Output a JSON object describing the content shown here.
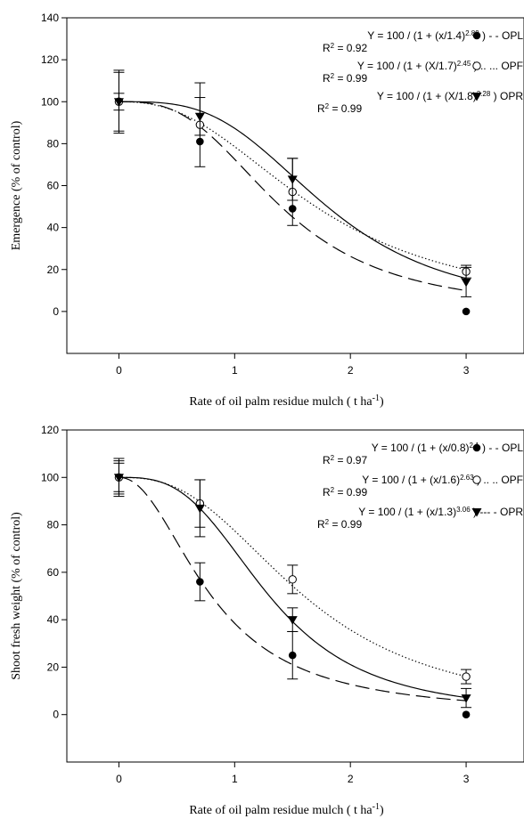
{
  "chart_data": [
    {
      "type": "scatter",
      "xlabel": "Rate of oil palm residue mulch ( t ha",
      "xlabel_sup": "-1",
      "xlabel_end": ")",
      "ylabel": "Emergence (% of control)",
      "xlim": [
        -0.45,
        3.5
      ],
      "ylim": [
        -20,
        140
      ],
      "xticks": [
        0,
        1,
        2,
        3
      ],
      "yticks": [
        0,
        20,
        40,
        60,
        80,
        100,
        120,
        140
      ],
      "legend_placement": "top-right",
      "series": [
        {
          "name": "OPL",
          "marker": "filled-circle",
          "line": "long-dash",
          "color": "#000000",
          "fit": {
            "c": 1.4,
            "b": 2.89
          },
          "x": [
            0,
            0.7,
            1.5,
            3
          ],
          "y": [
            100,
            81,
            49,
            0
          ],
          "err": [
            15,
            0,
            0,
            0
          ],
          "legend": {
            "eq_pre": "Y = 100 / (1 + (x/1.4)",
            "exp": "2.89",
            "eq_post": ") -",
            "name": "- OPL",
            "r2_pre": "R",
            "r2_post": " = 0.92"
          }
        },
        {
          "name": "OPF",
          "marker": "open-circle",
          "line": "dotted",
          "color": "#000000",
          "fit": {
            "c": 1.7,
            "b": 2.45
          },
          "x": [
            0,
            0.7,
            1.5,
            3
          ],
          "y": [
            100,
            89,
            57,
            19
          ],
          "err": [
            14,
            20,
            16,
            3
          ],
          "legend": {
            "eq_pre": "Y = 100 / (1 + (X/1.7)",
            "exp": "2.45",
            "eq_post": ") ..",
            "name": "... OPF",
            "r2_pre": "R",
            "r2_post": " = 0.99"
          }
        },
        {
          "name": "OPR",
          "marker": "filled-triangle-down",
          "line": "solid",
          "color": "#000000",
          "fit": {
            "c": 1.8,
            "b": 3.28
          },
          "x": [
            0,
            0.7,
            1.5,
            3
          ],
          "y": [
            100,
            93,
            63,
            14
          ],
          "err": [
            4,
            9,
            10,
            7
          ],
          "legend": {
            "eq_pre": "Y = 100 / (1 + (X/1.8)",
            "exp": "3.28",
            "eq_post": ")",
            "name": "OPR",
            "r2_pre": "R",
            "r2_post": " = 0.99"
          }
        }
      ]
    },
    {
      "type": "scatter",
      "xlabel": "Rate of oil palm residue mulch ( t ha",
      "xlabel_sup": "-1",
      "xlabel_end": ")",
      "ylabel": "Shoot fresh weight (% of control)",
      "xlim": [
        -0.45,
        3.5
      ],
      "ylim": [
        -20,
        120
      ],
      "xticks": [
        0,
        1,
        2,
        3
      ],
      "yticks": [
        0,
        20,
        40,
        60,
        80,
        100,
        120
      ],
      "legend_placement": "top-right",
      "series": [
        {
          "name": "OPL",
          "marker": "filled-circle",
          "line": "long-dash",
          "color": "#000000",
          "fit": {
            "c": 0.8,
            "b": 2.1
          },
          "x": [
            0,
            0.7,
            1.5,
            3
          ],
          "y": [
            100,
            56,
            25,
            0
          ],
          "err": [
            8,
            8,
            10,
            0
          ],
          "legend": {
            "eq_pre": "Y = 100 / (1 + (x/0.8)",
            "exp": "2.1",
            "eq_post": ") -",
            "name": "- OPL",
            "r2_pre": "R",
            "r2_post": " = 0.97"
          }
        },
        {
          "name": "OPF",
          "marker": "open-circle",
          "line": "dotted",
          "color": "#000000",
          "fit": {
            "c": 1.6,
            "b": 2.63
          },
          "x": [
            0,
            0.7,
            1.5,
            3
          ],
          "y": [
            100,
            89,
            57,
            16
          ],
          "err": [
            6,
            10,
            6,
            3
          ],
          "legend": {
            "eq_pre": "Y = 100 / (1 + (x/1.6)",
            "exp": "2.63",
            "eq_post": ") ..",
            "name": ".. OPF",
            "r2_pre": "R",
            "r2_post": " = 0.99"
          }
        },
        {
          "name": "OPR",
          "marker": "filled-triangle-down",
          "line": "solid",
          "color": "#000000",
          "fit": {
            "c": 1.3,
            "b": 3.06
          },
          "x": [
            0,
            0.7,
            1.5,
            3
          ],
          "y": [
            100,
            87,
            40,
            7
          ],
          "err": [
            7,
            12,
            5,
            4
          ],
          "legend": {
            "eq_pre": "Y = 100 / (1 + (x/1.3)",
            "exp": "3.06",
            "eq_post": ") ---",
            "name": "- OPR",
            "r2_pre": "R",
            "r2_post": " = 0.99"
          }
        }
      ]
    }
  ]
}
